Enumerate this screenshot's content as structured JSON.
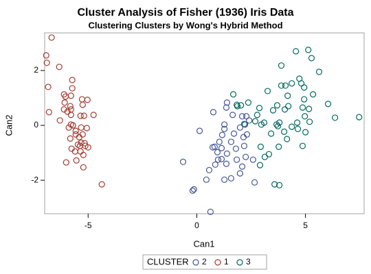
{
  "chart_data": {
    "type": "scatter",
    "title": "Cluster Analysis of Fisher (1936) Iris Data",
    "subtitle": "Clustering Clusters by Wong's Hybrid Method",
    "x_label": "Can1",
    "y_label": "Can2",
    "legend_title": "CLUSTER",
    "xlim": [
      -7.0,
      7.7
    ],
    "ylim": [
      -3.22,
      3.37
    ],
    "xticks": [
      -5,
      0,
      5
    ],
    "yticks": [
      -2,
      0,
      2
    ],
    "series": [
      {
        "name": "2",
        "color": "#445694",
        "x": [
          -0.63,
          0.13,
          0.76,
          1.27,
          1.27,
          1.17,
          0.73,
          0.82,
          1.04,
          0.95,
          1.14,
          1.58,
          1.8,
          1.39,
          1.14,
          0.98,
          0.85,
          0.57,
          0.44,
          -0.13,
          -0.19,
          0.63,
          1.36,
          1.84,
          1.58,
          1.27,
          1.99,
          2.09,
          2.25,
          2.18,
          1.71,
          1.99,
          2.15,
          2.31,
          1.36,
          1.39,
          1.65,
          2.09,
          2.28,
          2.41,
          2.59,
          2.66,
          2.18
        ],
        "y": [
          -1.33,
          -0.2,
          0.48,
          0.03,
          -0.13,
          -0.35,
          -0.8,
          -0.78,
          -0.6,
          -0.98,
          -0.83,
          -0.6,
          -0.85,
          -1.03,
          -1.23,
          -1.25,
          -1.43,
          -1.63,
          -1.98,
          -2.33,
          -2.38,
          -3.15,
          -1.4,
          -1.25,
          -1.93,
          -1.98,
          -1.75,
          -1.5,
          -1.15,
          -0.75,
          -0.3,
          -0.08,
          -0.43,
          -0.33,
          0.65,
          0.83,
          0.38,
          0.33,
          0.33,
          0.18,
          -1.25,
          -2.08,
          0.05
        ]
      },
      {
        "name": "1",
        "color": "#A23A2E",
        "x": [
          -6.68,
          -6.93,
          -6.9,
          -6.33,
          -6.84,
          -5.73,
          -5.73,
          -6.11,
          -6.04,
          -5.79,
          -5.28,
          -5.03,
          -5.25,
          -6.08,
          -5.82,
          -6.11,
          -5.95,
          -5.79,
          -6.8,
          -5.79,
          -5.35,
          -5.19,
          -4.75,
          -6.3,
          -5.79,
          -5.7,
          -5.89,
          -5.32,
          -5.57,
          -5.06,
          -5.57,
          -5.25,
          -5.82,
          -5.41,
          -5.47,
          -5.76,
          -5.32,
          -5.16,
          -5.38,
          -5.13,
          -5.0,
          -5.6,
          -5.35,
          -5.22,
          -6.01,
          -5.54,
          -5.22,
          -4.37
        ],
        "y": [
          3.2,
          2.55,
          2.28,
          2.13,
          1.4,
          1.65,
          1.35,
          1.13,
          1.05,
          1.08,
          0.95,
          0.93,
          0.75,
          0.83,
          0.7,
          0.58,
          0.5,
          0.58,
          0.48,
          0.38,
          0.35,
          0.35,
          0.38,
          0.18,
          0.03,
          0,
          -0.08,
          -0.08,
          -0.2,
          -0.1,
          -0.33,
          -0.33,
          -0.48,
          -0.43,
          -0.7,
          -0.85,
          -0.63,
          -0.65,
          -0.75,
          -0.75,
          -0.8,
          -0.95,
          -0.95,
          -1.08,
          -1.35,
          -1.28,
          -1.53,
          -2.15
        ]
      },
      {
        "name": "3",
        "color": "#01665E",
        "x": [
          1.84,
          1.68,
          2.03,
          1.87,
          2.22,
          2.37,
          2.78,
          2.88,
          2.69,
          2.97,
          3.26,
          3.1,
          3.51,
          3.7,
          3.73,
          3.8,
          3.67,
          3.42,
          2.94,
          3.32,
          3.13,
          2.91,
          3.58,
          3.8,
          3.77,
          4.15,
          4.02,
          3.89,
          4.08,
          3.89,
          4.18,
          4.21,
          4.05,
          4.37,
          4.56,
          4.62,
          4.72,
          4.81,
          4.94,
          4.94,
          4.87,
          4.97,
          5.0,
          4.87,
          4.65,
          4.37,
          5.13,
          5.28,
          5.35,
          5.16,
          5.19,
          5.63,
          6.04,
          6.36,
          7.47
        ],
        "y": [
          0.75,
          1.13,
          0.73,
          0.7,
          0.03,
          0.83,
          0.38,
          0.63,
          0.15,
          0.03,
          1.25,
          0.1,
          0.55,
          0.73,
          -0.03,
          0.1,
          0.03,
          -0.3,
          -0.78,
          -1.05,
          -1.15,
          -1.45,
          -2.15,
          -2.18,
          -0.78,
          -0.5,
          -0.23,
          1.45,
          1.45,
          2.18,
          1.08,
          0.7,
          0.58,
          1.53,
          2.7,
          0.1,
          1.7,
          1.53,
          1.38,
          0.95,
          0.65,
          0.33,
          -0.25,
          -0.75,
          -0.13,
          -0.05,
          2.75,
          2.45,
          1.13,
          0.6,
          0.13,
          1.95,
          0.78,
          0.28,
          0.3
        ]
      }
    ]
  }
}
